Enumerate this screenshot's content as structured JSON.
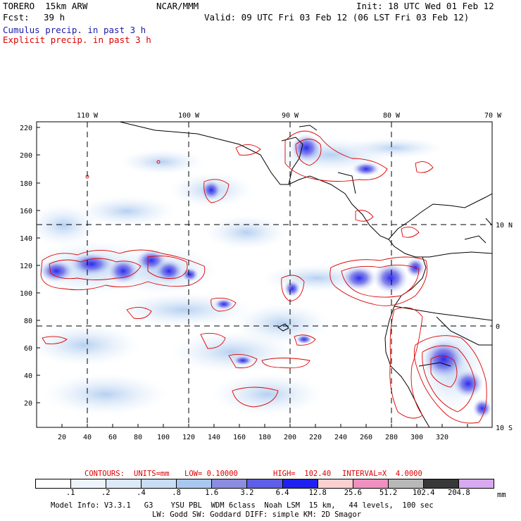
{
  "header": {
    "model_name": "TORERO  15km ARW",
    "institution": "NCAR/MMM",
    "init": "Init: 18 UTC Wed 01 Feb 12",
    "fcst_label": "Fcst:",
    "fcst_hours": "39 h",
    "valid": "Valid: 09 UTC Fri 03 Feb 12 (06 LST Fri 03 Feb 12)",
    "cumulus_label": "Cumulus precip. in past 3 h",
    "explicit_label": "Explicit precip. in past 3 h"
  },
  "top_axis": [
    "110 W",
    "100 W",
    "90 W",
    "80 W",
    "70 W"
  ],
  "left_axis": [
    "220",
    "200",
    "180",
    "160",
    "140",
    "120",
    "100",
    "80",
    "60",
    "40",
    "20"
  ],
  "bottom_axis": [
    "20",
    "40",
    "60",
    "80",
    "100",
    "120",
    "140",
    "160",
    "180",
    "200",
    "220",
    "240",
    "260",
    "280",
    "300",
    "320"
  ],
  "right_axis": [
    "10 N",
    "0",
    "10 S"
  ],
  "contours": {
    "label": "CONTOURS:",
    "units": "UNITS=mm",
    "low": "LOW= 0.10000",
    "high": "HIGH=  102.40",
    "interval": "INTERVAL=X  4.0000"
  },
  "legend": {
    "colors": [
      "#ffffff",
      "#eef4fb",
      "#dde9f7",
      "#c9ddf4",
      "#a9c8ef",
      "#8c8ce0",
      "#5e5ee8",
      "#2020f0",
      "#fbd0d0",
      "#f090c0",
      "#b8b8b8",
      "#383838",
      "#d8a8f0"
    ],
    "ticks": [
      ".1",
      ".2",
      ".4",
      ".8",
      "1.6",
      "3.2",
      "6.4",
      "12.8",
      "25.6",
      "51.2",
      "102.4",
      "204.8"
    ],
    "unit": "mm"
  },
  "footer": {
    "line1": "Model Info: V3.3.1   G3    YSU PBL  WDM 6class  Noah LSM  15 km,   44 levels,  100 sec",
    "line2": "LW: Godd SW: Goddard DIFF: simple KM: 2D Smagor"
  }
}
